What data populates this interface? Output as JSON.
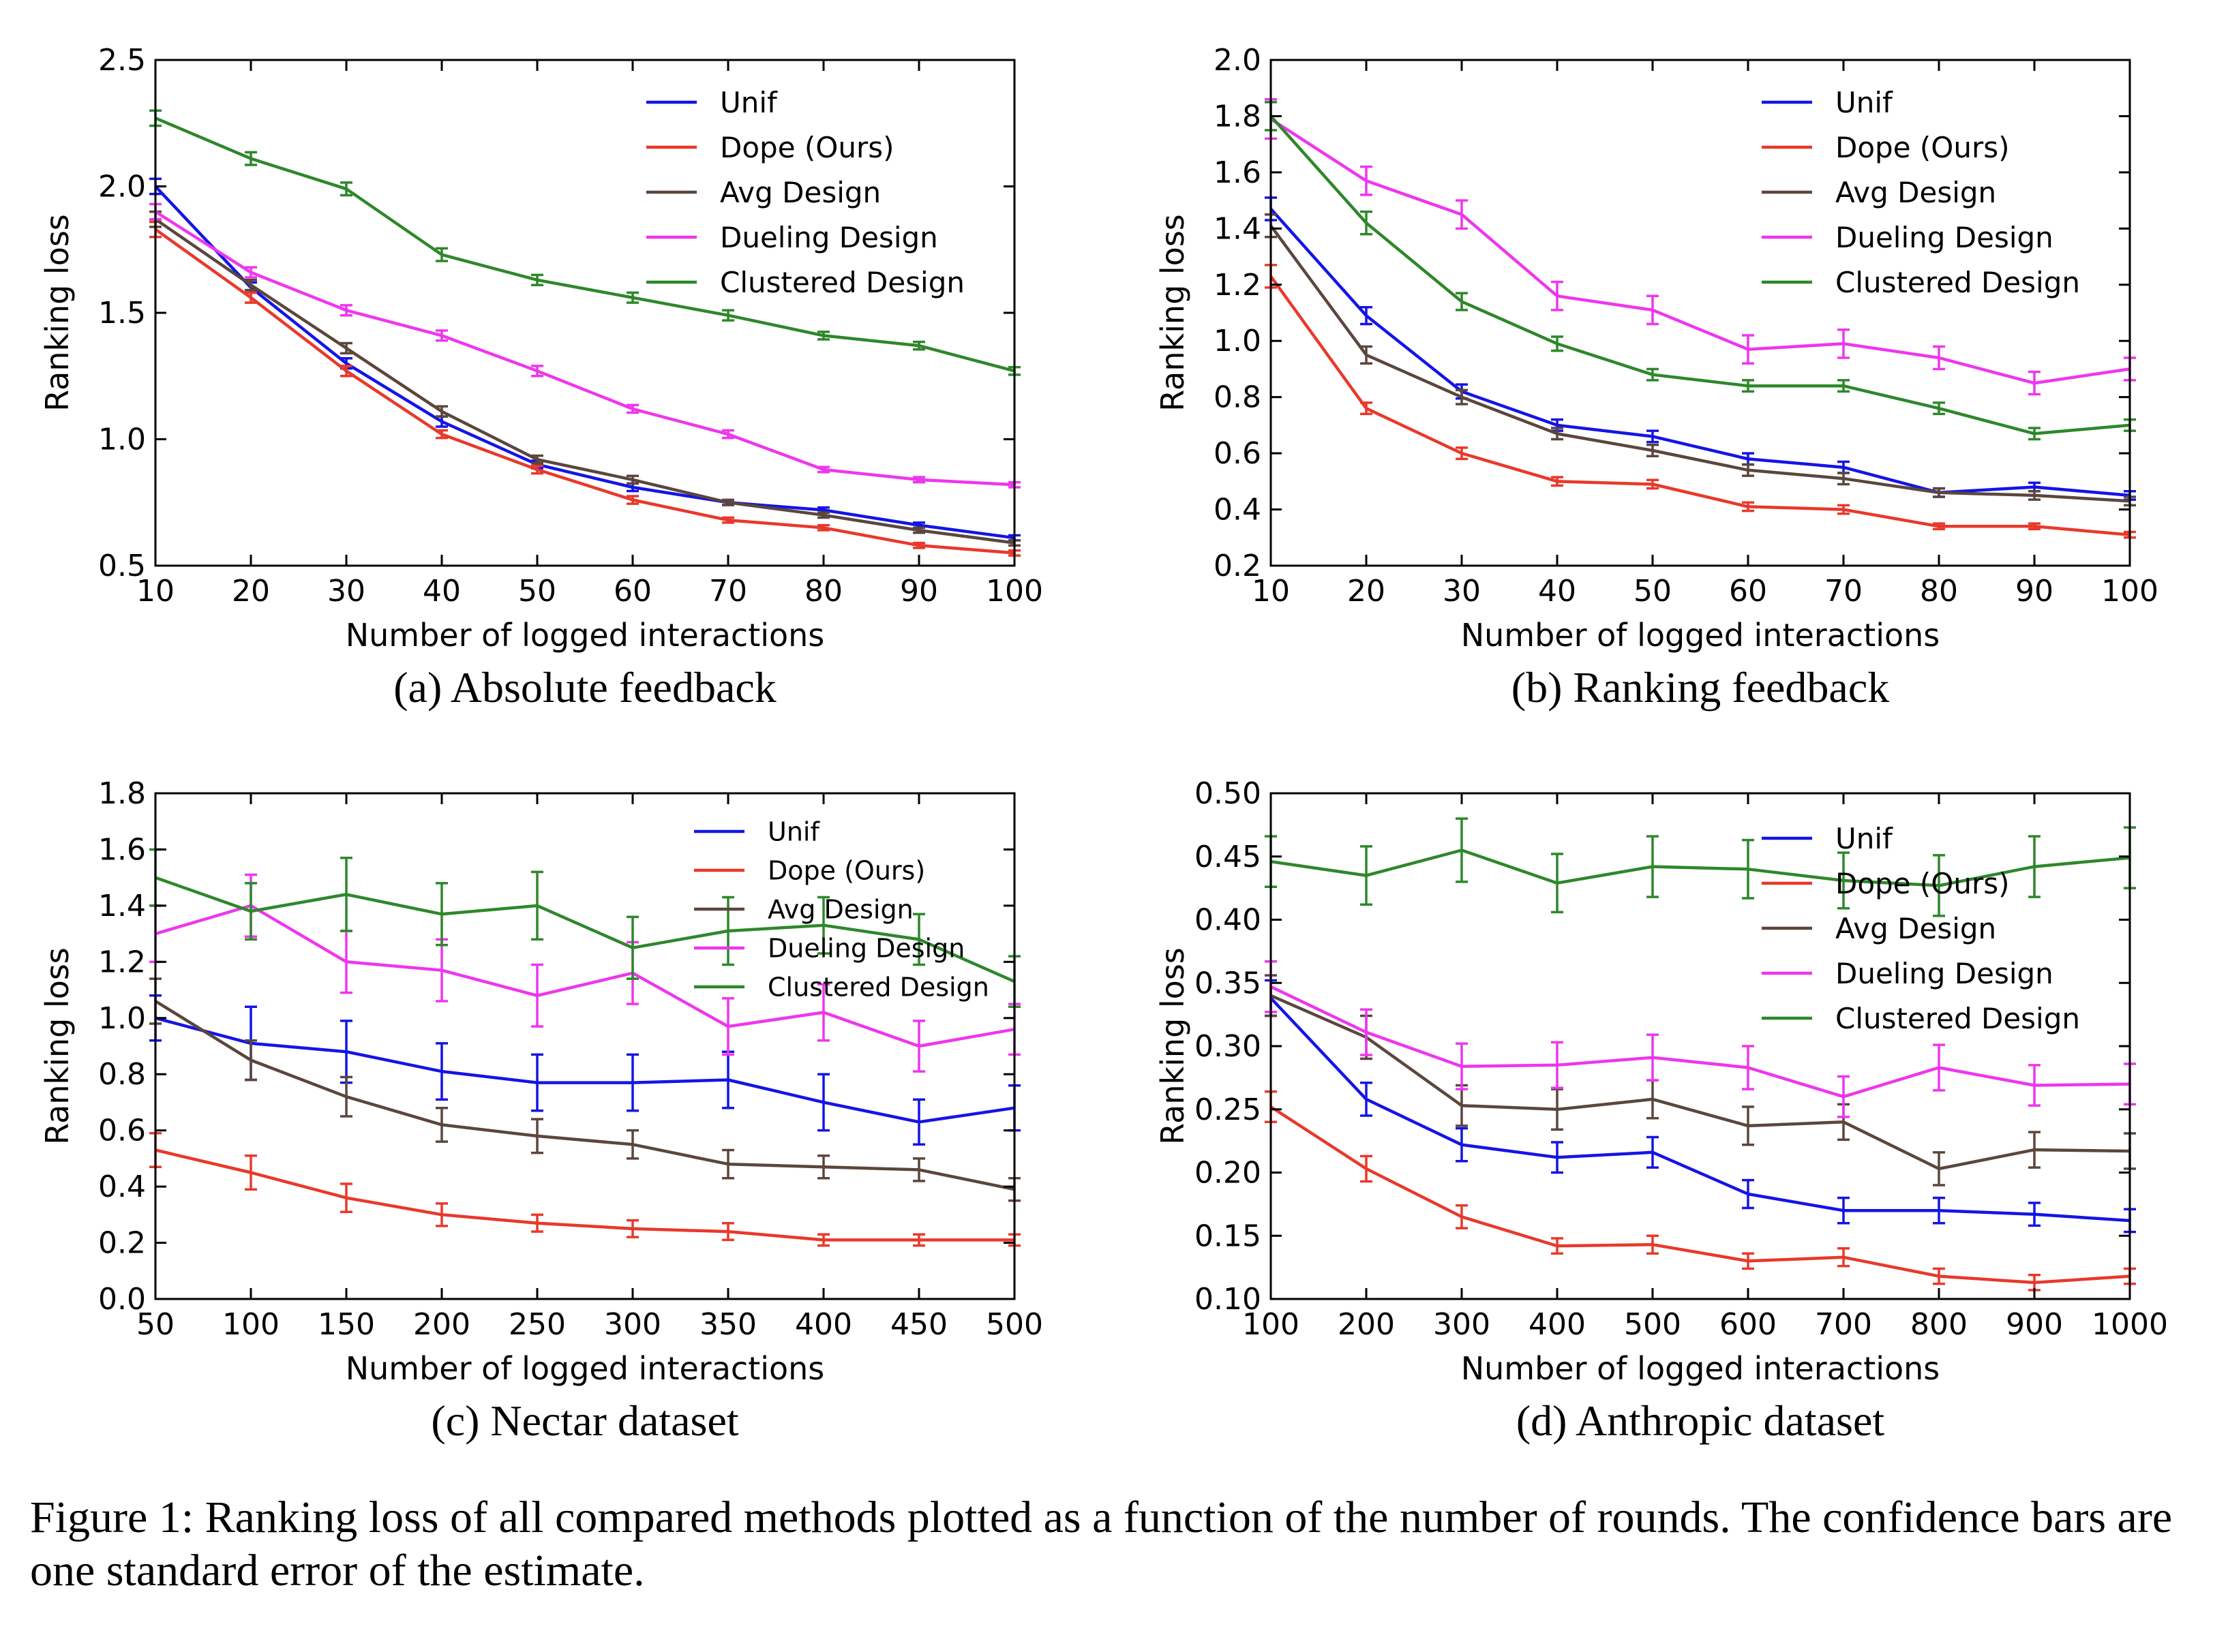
{
  "figure_caption": "Figure 1: Ranking loss of all compared methods plotted as a function of the number of rounds. The confidence bars are one standard error of the estimate.",
  "colors": {
    "Unif": "#1414e6",
    "Dope (Ours)": "#e8392b",
    "Avg Design": "#5b463d",
    "Dueling Design": "#ee36ee",
    "Clustered Design": "#2e872b"
  },
  "chart_data": [
    {
      "type": "line",
      "panel": "a",
      "title": "(a)  Absolute feedback",
      "xlabel": "Number of logged interactions",
      "ylabel": "Ranking loss",
      "x": [
        10,
        20,
        30,
        40,
        50,
        60,
        70,
        80,
        90,
        100
      ],
      "xlim": [
        10,
        100
      ],
      "ylim": [
        0.5,
        2.5
      ],
      "xticks": [
        "10",
        "20",
        "30",
        "40",
        "50",
        "60",
        "70",
        "80",
        "90",
        "100"
      ],
      "yticks": [
        "0.5",
        "1.0",
        "1.5",
        "2.0",
        "2.5"
      ],
      "legend": "top-right",
      "series": [
        {
          "name": "Unif",
          "values": [
            2.0,
            1.6,
            1.3,
            1.07,
            0.9,
            0.81,
            0.75,
            0.72,
            0.66,
            0.61
          ],
          "err": [
            0.03,
            0.02,
            0.02,
            0.02,
            0.015,
            0.015,
            0.01,
            0.01,
            0.01,
            0.01
          ]
        },
        {
          "name": "Dope (Ours)",
          "values": [
            1.83,
            1.56,
            1.27,
            1.02,
            0.88,
            0.76,
            0.68,
            0.65,
            0.58,
            0.55
          ],
          "err": [
            0.03,
            0.02,
            0.02,
            0.015,
            0.015,
            0.015,
            0.01,
            0.01,
            0.01,
            0.01
          ]
        },
        {
          "name": "Avg Design",
          "values": [
            1.87,
            1.61,
            1.36,
            1.11,
            0.92,
            0.84,
            0.75,
            0.7,
            0.64,
            0.59
          ],
          "err": [
            0.03,
            0.02,
            0.02,
            0.02,
            0.015,
            0.015,
            0.01,
            0.01,
            0.01,
            0.01
          ]
        },
        {
          "name": "Dueling Design",
          "values": [
            1.9,
            1.66,
            1.51,
            1.41,
            1.27,
            1.12,
            1.02,
            0.88,
            0.84,
            0.82
          ],
          "err": [
            0.03,
            0.02,
            0.02,
            0.02,
            0.02,
            0.015,
            0.015,
            0.01,
            0.01,
            0.01
          ]
        },
        {
          "name": "Clustered Design",
          "values": [
            2.27,
            2.11,
            1.99,
            1.73,
            1.63,
            1.56,
            1.49,
            1.41,
            1.37,
            1.27
          ],
          "err": [
            0.03,
            0.025,
            0.025,
            0.025,
            0.02,
            0.02,
            0.02,
            0.015,
            0.015,
            0.015
          ]
        }
      ]
    },
    {
      "type": "line",
      "panel": "b",
      "title": "(b)  Ranking feedback",
      "xlabel": "Number of logged interactions",
      "ylabel": "Ranking loss",
      "x": [
        10,
        20,
        30,
        40,
        50,
        60,
        70,
        80,
        90,
        100
      ],
      "xlim": [
        10,
        100
      ],
      "ylim": [
        0.2,
        2.0
      ],
      "xticks": [
        "10",
        "20",
        "30",
        "40",
        "50",
        "60",
        "70",
        "80",
        "90",
        "100"
      ],
      "yticks": [
        "0.2",
        "0.4",
        "0.6",
        "0.8",
        "1.0",
        "1.2",
        "1.4",
        "1.6",
        "1.8",
        "2.0"
      ],
      "legend": "top-right",
      "series": [
        {
          "name": "Unif",
          "values": [
            1.47,
            1.09,
            0.82,
            0.7,
            0.66,
            0.58,
            0.55,
            0.46,
            0.48,
            0.45
          ],
          "err": [
            0.04,
            0.03,
            0.025,
            0.02,
            0.02,
            0.02,
            0.02,
            0.015,
            0.015,
            0.015
          ]
        },
        {
          "name": "Dope (Ours)",
          "values": [
            1.23,
            0.76,
            0.6,
            0.5,
            0.49,
            0.41,
            0.4,
            0.34,
            0.34,
            0.31
          ],
          "err": [
            0.04,
            0.02,
            0.02,
            0.015,
            0.015,
            0.015,
            0.015,
            0.01,
            0.01,
            0.01
          ]
        },
        {
          "name": "Avg Design",
          "values": [
            1.41,
            0.95,
            0.8,
            0.67,
            0.61,
            0.54,
            0.51,
            0.46,
            0.45,
            0.43
          ],
          "err": [
            0.04,
            0.03,
            0.025,
            0.02,
            0.02,
            0.02,
            0.02,
            0.015,
            0.015,
            0.015
          ]
        },
        {
          "name": "Dueling Design",
          "values": [
            1.79,
            1.57,
            1.45,
            1.16,
            1.11,
            0.97,
            0.99,
            0.94,
            0.85,
            0.9
          ],
          "err": [
            0.07,
            0.05,
            0.05,
            0.05,
            0.05,
            0.05,
            0.05,
            0.04,
            0.04,
            0.04
          ]
        },
        {
          "name": "Clustered Design",
          "values": [
            1.8,
            1.42,
            1.14,
            0.99,
            0.88,
            0.84,
            0.84,
            0.76,
            0.67,
            0.7
          ],
          "err": [
            0.05,
            0.04,
            0.03,
            0.025,
            0.02,
            0.02,
            0.02,
            0.02,
            0.02,
            0.02
          ]
        }
      ]
    },
    {
      "type": "line",
      "panel": "c",
      "title": "(c)  Nectar dataset",
      "xlabel": "Number of logged interactions",
      "ylabel": "Ranking loss",
      "x": [
        50,
        100,
        150,
        200,
        250,
        300,
        350,
        400,
        450,
        500
      ],
      "xlim": [
        50,
        500
      ],
      "ylim": [
        0.0,
        1.8
      ],
      "xticks": [
        "50",
        "100",
        "150",
        "200",
        "250",
        "300",
        "350",
        "400",
        "450",
        "500"
      ],
      "yticks": [
        "0.0",
        "0.2",
        "0.4",
        "0.6",
        "0.8",
        "1.0",
        "1.2",
        "1.4",
        "1.6",
        "1.8"
      ],
      "legend": "top-right",
      "series": [
        {
          "name": "Unif",
          "values": [
            1.0,
            0.91,
            0.88,
            0.81,
            0.77,
            0.77,
            0.78,
            0.7,
            0.63,
            0.68
          ],
          "err": [
            0.08,
            0.13,
            0.11,
            0.1,
            0.1,
            0.1,
            0.1,
            0.1,
            0.08,
            0.08
          ]
        },
        {
          "name": "Dope (Ours)",
          "values": [
            0.53,
            0.45,
            0.36,
            0.3,
            0.27,
            0.25,
            0.24,
            0.21,
            0.21,
            0.21
          ],
          "err": [
            0.06,
            0.06,
            0.05,
            0.04,
            0.03,
            0.03,
            0.03,
            0.02,
            0.02,
            0.02
          ]
        },
        {
          "name": "Avg Design",
          "values": [
            1.06,
            0.85,
            0.72,
            0.62,
            0.58,
            0.55,
            0.48,
            0.47,
            0.46,
            0.39
          ],
          "err": [
            0.08,
            0.07,
            0.07,
            0.06,
            0.06,
            0.05,
            0.05,
            0.04,
            0.04,
            0.04
          ]
        },
        {
          "name": "Dueling Design",
          "values": [
            1.3,
            1.4,
            1.2,
            1.17,
            1.08,
            1.16,
            0.97,
            1.02,
            0.9,
            0.96
          ],
          "err": [
            0.1,
            0.11,
            0.11,
            0.11,
            0.11,
            0.11,
            0.1,
            0.1,
            0.09,
            0.09
          ]
        },
        {
          "name": "Clustered Design",
          "values": [
            1.5,
            1.38,
            1.44,
            1.37,
            1.4,
            1.25,
            1.31,
            1.33,
            1.28,
            1.13
          ],
          "err": [
            0.1,
            0.1,
            0.13,
            0.11,
            0.12,
            0.11,
            0.12,
            0.1,
            0.09,
            0.09
          ]
        }
      ]
    },
    {
      "type": "line",
      "panel": "d",
      "title": "(d)  Anthropic dataset",
      "xlabel": "Number of logged interactions",
      "ylabel": "Ranking loss",
      "x": [
        100,
        200,
        300,
        400,
        500,
        600,
        700,
        800,
        900,
        1000
      ],
      "xlim": [
        100,
        1000
      ],
      "ylim": [
        0.1,
        0.5
      ],
      "xticks": [
        "100",
        "200",
        "300",
        "400",
        "500",
        "600",
        "700",
        "800",
        "900",
        "1000"
      ],
      "yticks": [
        "0.10",
        "0.15",
        "0.20",
        "0.25",
        "0.30",
        "0.35",
        "0.40",
        "0.45",
        "0.50"
      ],
      "legend": "top-right",
      "series": [
        {
          "name": "Unif",
          "values": [
            0.338,
            0.258,
            0.222,
            0.212,
            0.216,
            0.183,
            0.17,
            0.17,
            0.167,
            0.162
          ],
          "err": [
            0.014,
            0.013,
            0.013,
            0.012,
            0.012,
            0.011,
            0.01,
            0.01,
            0.009,
            0.009
          ]
        },
        {
          "name": "Dope (Ours)",
          "values": [
            0.252,
            0.203,
            0.165,
            0.142,
            0.143,
            0.13,
            0.133,
            0.118,
            0.113,
            0.118
          ],
          "err": [
            0.012,
            0.01,
            0.009,
            0.006,
            0.007,
            0.006,
            0.007,
            0.006,
            0.006,
            0.006
          ]
        },
        {
          "name": "Avg Design",
          "values": [
            0.34,
            0.307,
            0.253,
            0.25,
            0.258,
            0.237,
            0.24,
            0.203,
            0.218,
            0.217
          ],
          "err": [
            0.016,
            0.017,
            0.016,
            0.016,
            0.015,
            0.015,
            0.014,
            0.013,
            0.014,
            0.014
          ]
        },
        {
          "name": "Dueling Design",
          "values": [
            0.347,
            0.311,
            0.284,
            0.285,
            0.291,
            0.283,
            0.26,
            0.283,
            0.269,
            0.27
          ],
          "err": [
            0.02,
            0.018,
            0.018,
            0.018,
            0.018,
            0.017,
            0.016,
            0.018,
            0.016,
            0.016
          ]
        },
        {
          "name": "Clustered Design",
          "values": [
            0.446,
            0.435,
            0.455,
            0.429,
            0.442,
            0.44,
            0.431,
            0.427,
            0.442,
            0.449
          ],
          "err": [
            0.02,
            0.023,
            0.025,
            0.023,
            0.024,
            0.023,
            0.022,
            0.024,
            0.024,
            0.024
          ]
        }
      ]
    }
  ]
}
